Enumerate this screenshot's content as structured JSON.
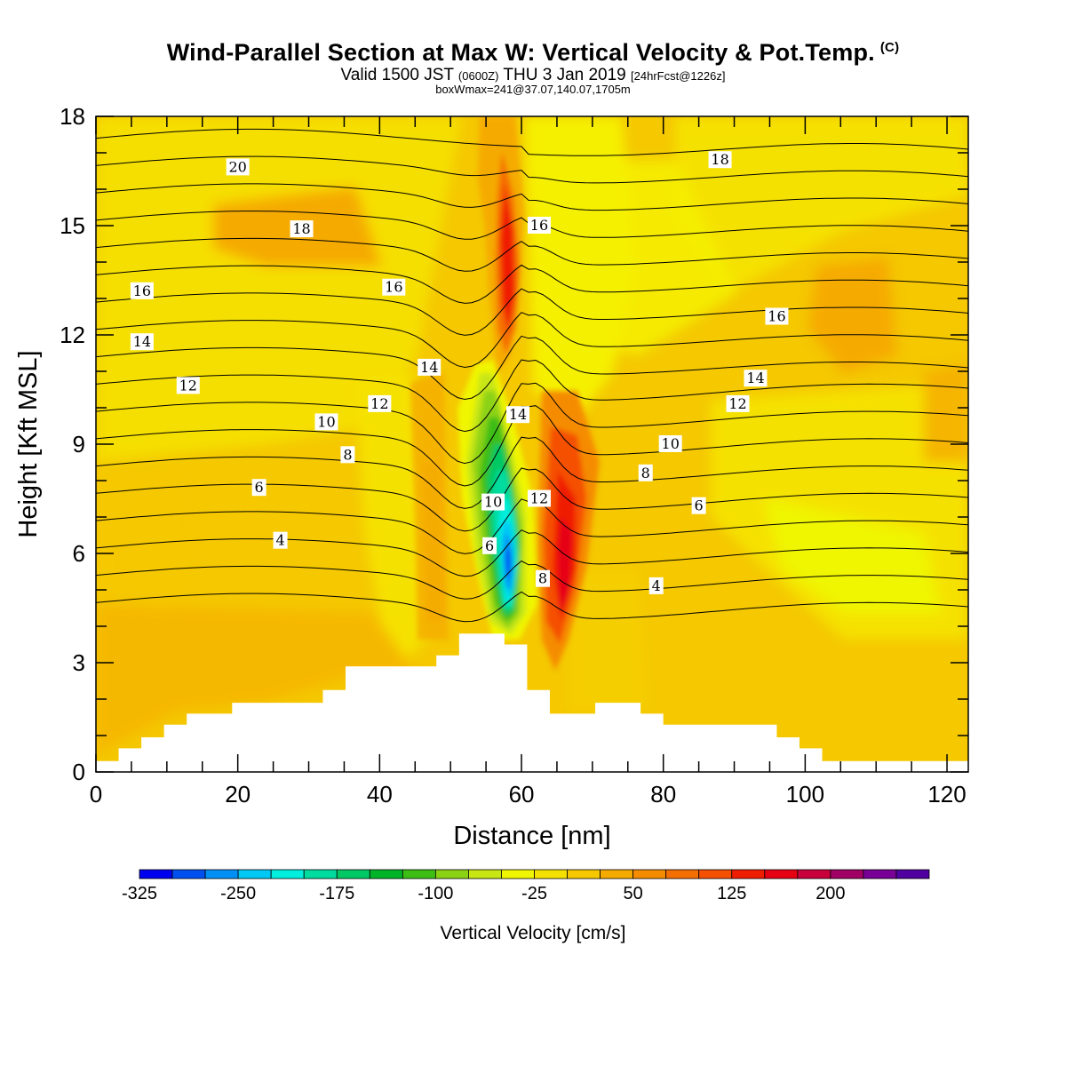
{
  "header": {
    "title": "Wind-Parallel Section at Max W: Vertical Velocity & Pot.Temp.",
    "title_mark": "(C)",
    "valid_prefix": "Valid 1500 JST",
    "valid_z": "(0600Z)",
    "valid_date": "THU 3 Jan 2019",
    "valid_fcst": "[24hrFcst@1226z]",
    "boxwmax": "boxWmax=241@37.07,140.07,1705m"
  },
  "chart_data": {
    "type": "heatmap",
    "title": "Wind-Parallel Section at Max W: Vertical Velocity & Pot.Temp.",
    "xlabel": "Distance [nm]",
    "ylabel": "Height [Kft MSL]",
    "xlim": [
      0,
      123
    ],
    "ylim": [
      0,
      18
    ],
    "x_ticks": [
      0,
      20,
      40,
      60,
      80,
      100,
      120
    ],
    "y_ticks": [
      0,
      3,
      6,
      9,
      12,
      15,
      18
    ],
    "colorbar": {
      "title": "Vertical Velocity [cm/s]",
      "tick_values": [
        -325,
        -250,
        -175,
        -100,
        -25,
        50,
        125,
        200
      ],
      "tick_labels": [
        "-325",
        "-250",
        "-175",
        "-100",
        "-25",
        "50",
        "125",
        "200"
      ],
      "min": -325,
      "step": 25,
      "colors": [
        "#0000f0",
        "#0050f0",
        "#0090f5",
        "#00c8f5",
        "#00eedd",
        "#00dca0",
        "#00c864",
        "#00b428",
        "#3cbe14",
        "#8cd214",
        "#c8e614",
        "#f0f500",
        "#f5e100",
        "#f5c800",
        "#f5aa00",
        "#f58c00",
        "#f56e00",
        "#f55000",
        "#f01e00",
        "#e60014",
        "#c8003c",
        "#a00064",
        "#780096",
        "#5000a0"
      ]
    },
    "theta_contour_labels": [
      {
        "label": "20",
        "x": 20,
        "y": 16.6
      },
      {
        "label": "18",
        "x": 29,
        "y": 14.9
      },
      {
        "label": "16",
        "x": 6.5,
        "y": 13.2
      },
      {
        "label": "14",
        "x": 6.5,
        "y": 11.8
      },
      {
        "label": "12",
        "x": 13,
        "y": 10.6
      },
      {
        "label": "10",
        "x": 32.5,
        "y": 9.6
      },
      {
        "label": "8",
        "x": 35.5,
        "y": 8.7
      },
      {
        "label": "6",
        "x": 23,
        "y": 7.8
      },
      {
        "label": "4",
        "x": 26,
        "y": 6.35
      },
      {
        "label": "16",
        "x": 42,
        "y": 13.3
      },
      {
        "label": "14",
        "x": 47,
        "y": 11.1
      },
      {
        "label": "12",
        "x": 40,
        "y": 10.1
      },
      {
        "label": "18",
        "x": 88,
        "y": 16.8
      },
      {
        "label": "16",
        "x": 62.5,
        "y": 15.0
      },
      {
        "label": "16",
        "x": 96,
        "y": 12.5
      },
      {
        "label": "14",
        "x": 93,
        "y": 10.8
      },
      {
        "label": "12",
        "x": 90.5,
        "y": 10.1
      },
      {
        "label": "10",
        "x": 81,
        "y": 9.0
      },
      {
        "label": "8",
        "x": 77.5,
        "y": 8.2
      },
      {
        "label": "6",
        "x": 85,
        "y": 7.3
      },
      {
        "label": "4",
        "x": 79,
        "y": 5.1
      },
      {
        "label": "14",
        "x": 59.5,
        "y": 9.8
      },
      {
        "label": "12",
        "x": 62.5,
        "y": 7.5
      },
      {
        "label": "10",
        "x": 56,
        "y": 7.4
      },
      {
        "label": "6",
        "x": 55.5,
        "y": 6.2
      },
      {
        "label": "8",
        "x": 63,
        "y": 5.3
      }
    ],
    "terrain": [
      [
        0,
        0.3
      ],
      [
        3.2,
        0.3
      ],
      [
        3.2,
        0.65
      ],
      [
        6.4,
        0.65
      ],
      [
        6.4,
        0.95
      ],
      [
        9.6,
        0.95
      ],
      [
        9.6,
        1.3
      ],
      [
        12.8,
        1.3
      ],
      [
        12.8,
        1.6
      ],
      [
        19.2,
        1.6
      ],
      [
        19.2,
        1.9
      ],
      [
        32,
        1.9
      ],
      [
        32,
        2.25
      ],
      [
        35.2,
        2.25
      ],
      [
        35.2,
        2.9
      ],
      [
        48,
        2.9
      ],
      [
        48,
        3.2
      ],
      [
        51.2,
        3.2
      ],
      [
        51.2,
        3.8
      ],
      [
        57.6,
        3.8
      ],
      [
        57.6,
        3.5
      ],
      [
        60.8,
        3.5
      ],
      [
        60.8,
        2.25
      ],
      [
        64,
        2.25
      ],
      [
        64,
        1.6
      ],
      [
        70.4,
        1.6
      ],
      [
        70.4,
        1.9
      ],
      [
        76.8,
        1.9
      ],
      [
        76.8,
        1.6
      ],
      [
        80,
        1.6
      ],
      [
        80,
        1.3
      ],
      [
        96,
        1.3
      ],
      [
        96,
        0.95
      ],
      [
        99.2,
        0.95
      ],
      [
        99.2,
        0.65
      ],
      [
        102.4,
        0.65
      ],
      [
        102.4,
        0.3
      ],
      [
        123,
        0.3
      ]
    ]
  }
}
